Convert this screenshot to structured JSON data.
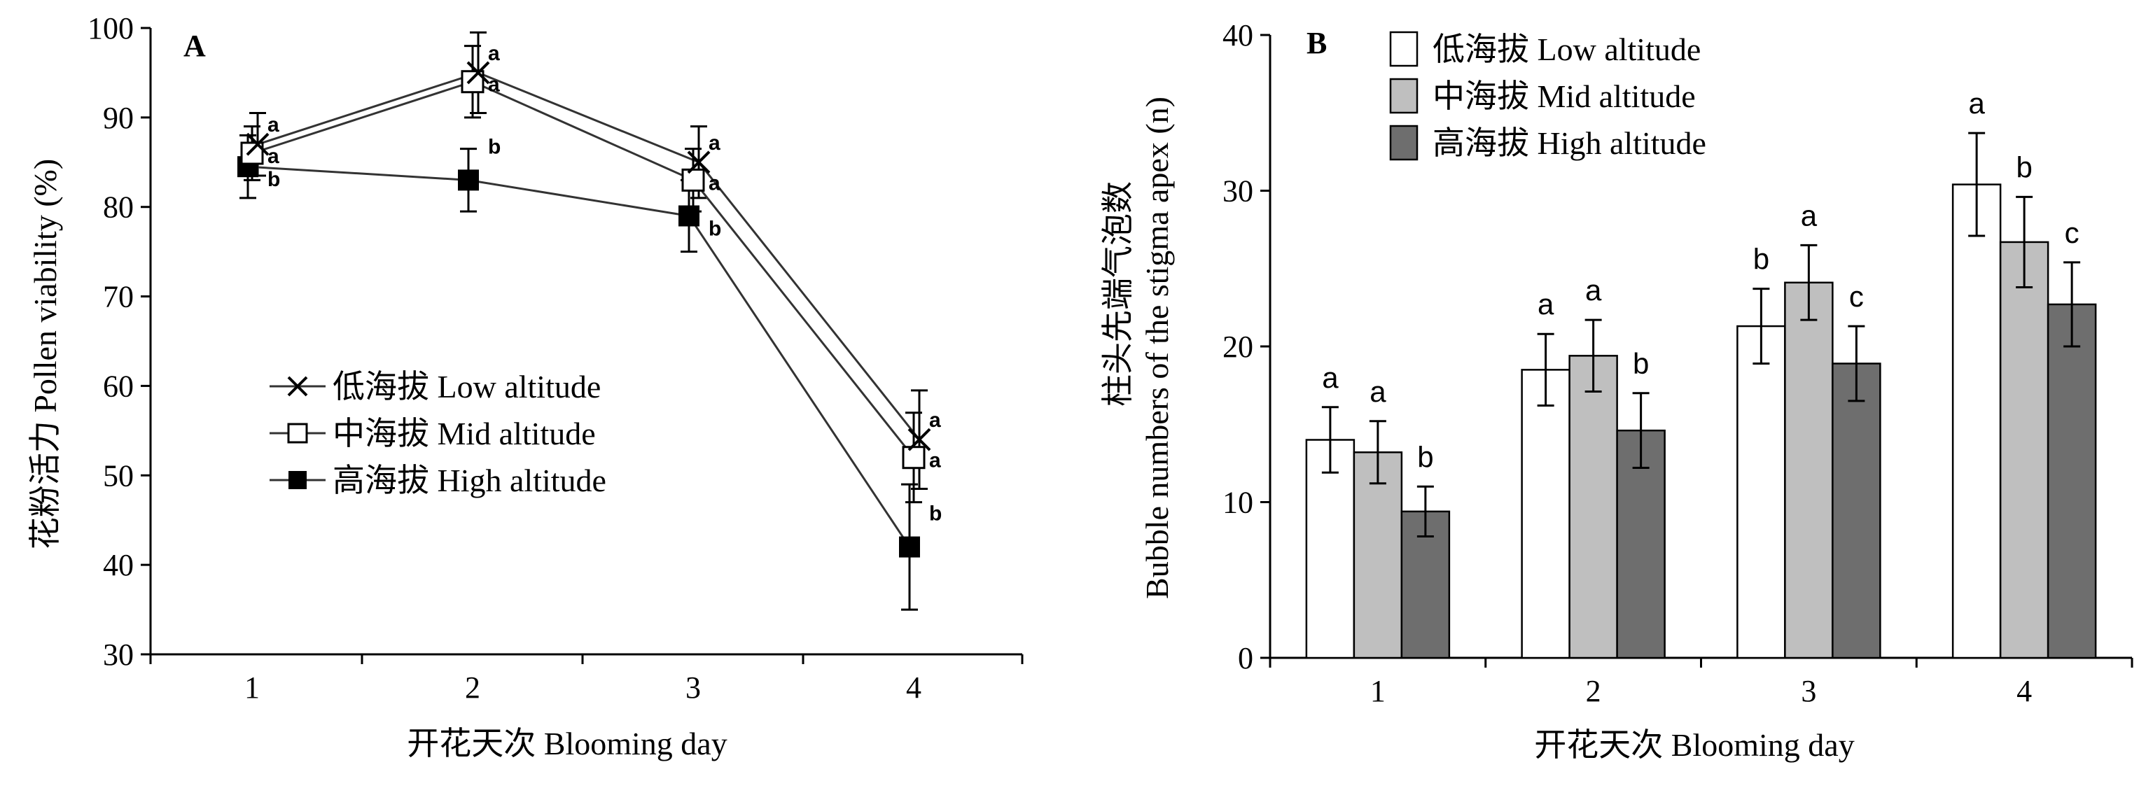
{
  "colors": {
    "axis": "#000000",
    "series_line": "#333333",
    "bar_low": "#ffffff",
    "bar_mid": "#bfbfbf",
    "bar_high": "#6e6e6e"
  },
  "chart_data": [
    {
      "type": "line",
      "panel_label": "A",
      "xlabel": "开花天次 Blooming day",
      "ylabel": "花粉活力 Pollen viability (%)",
      "categories": [
        "1",
        "2",
        "3",
        "4"
      ],
      "ylim": [
        30,
        100
      ],
      "yticks": [
        30,
        40,
        50,
        60,
        70,
        80,
        90,
        100
      ],
      "grid": false,
      "legend": "center-left",
      "series": [
        {
          "name": "低海拔 Low altitude",
          "marker": "x-cross-icon",
          "values": [
            87,
            95,
            85,
            54
          ],
          "errors": [
            3.5,
            4.5,
            4,
            5.5
          ],
          "letters": [
            "a",
            "a",
            "a",
            "a"
          ]
        },
        {
          "name": "中海拔 Mid altitude",
          "marker": "open-square-icon",
          "values": [
            86,
            94,
            83,
            52
          ],
          "errors": [
            3,
            4,
            3.5,
            5
          ],
          "letters": [
            "a",
            "a",
            "a",
            "a"
          ]
        },
        {
          "name": "高海拔 High altitude",
          "marker": "filled-square-icon",
          "values": [
            84.5,
            83,
            79,
            42
          ],
          "errors": [
            3.5,
            3.5,
            4,
            7
          ],
          "letters": [
            "b",
            "b",
            "b",
            "b"
          ]
        }
      ]
    },
    {
      "type": "bar",
      "panel_label": "B",
      "xlabel": "开花天次 Blooming day",
      "ylabel_lines": [
        "柱头先端气泡数",
        "Bubble numbers of the stigma apex (n)"
      ],
      "categories": [
        "1",
        "2",
        "3",
        "4"
      ],
      "ylim": [
        0,
        40
      ],
      "yticks": [
        0,
        10,
        20,
        30,
        40
      ],
      "grid": false,
      "legend": "top-left",
      "series": [
        {
          "name": "低海拔 Low altitude",
          "values": [
            14,
            18.5,
            21.3,
            30.4
          ],
          "errors": [
            2.1,
            2.3,
            2.4,
            3.3
          ],
          "letters": [
            "a",
            "a",
            "b",
            "a"
          ]
        },
        {
          "name": "中海拔 Mid altitude",
          "values": [
            13.2,
            19.4,
            24.1,
            26.7
          ],
          "errors": [
            2,
            2.3,
            2.4,
            2.9
          ],
          "letters": [
            "a",
            "a",
            "a",
            "b"
          ]
        },
        {
          "name": "高海拔 High altitude",
          "values": [
            9.4,
            14.6,
            18.9,
            22.7
          ],
          "errors": [
            1.6,
            2.4,
            2.4,
            2.7
          ],
          "letters": [
            "b",
            "b",
            "c",
            "c"
          ]
        }
      ]
    }
  ]
}
